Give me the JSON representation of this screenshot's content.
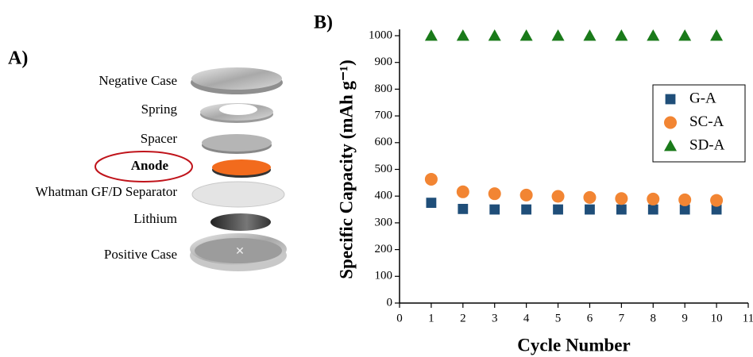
{
  "panel_a": {
    "label": "A)",
    "layers": [
      "Negative Case",
      "Spring",
      "Spacer",
      "Anode",
      "Whatman GF/D Separator",
      "Lithium",
      "Positive Case"
    ]
  },
  "chart_data": {
    "type": "scatter",
    "panel_label": "B)",
    "x_label": "Cycle Number",
    "y_label": "Specific Capacity (mAh g⁻¹)",
    "x": [
      1,
      2,
      3,
      4,
      5,
      6,
      7,
      8,
      9,
      10
    ],
    "series": [
      {
        "name": "G-A",
        "color": "#1f4e79",
        "marker": "square",
        "values": [
          375,
          352,
          350,
          350,
          350,
          350,
          350,
          350,
          350,
          350
        ]
      },
      {
        "name": "SC-A",
        "color": "#f28533",
        "marker": "circle",
        "values": [
          463,
          416,
          409,
          404,
          399,
          395,
          391,
          389,
          386,
          384
        ]
      },
      {
        "name": "SD-A",
        "color": "#1a7a1a",
        "marker": "triangle",
        "values": [
          1000,
          1000,
          1000,
          1000,
          1000,
          1000,
          1000,
          1000,
          1000,
          1000
        ]
      }
    ],
    "xlim": [
      0,
      11
    ],
    "xticks": [
      0,
      1,
      2,
      3,
      4,
      5,
      6,
      7,
      8,
      9,
      10,
      11
    ],
    "ylim": [
      0,
      1000
    ],
    "yticks": [
      0,
      100,
      200,
      300,
      400,
      500,
      600,
      700,
      800,
      900,
      1000
    ],
    "legend": "upper-right"
  }
}
